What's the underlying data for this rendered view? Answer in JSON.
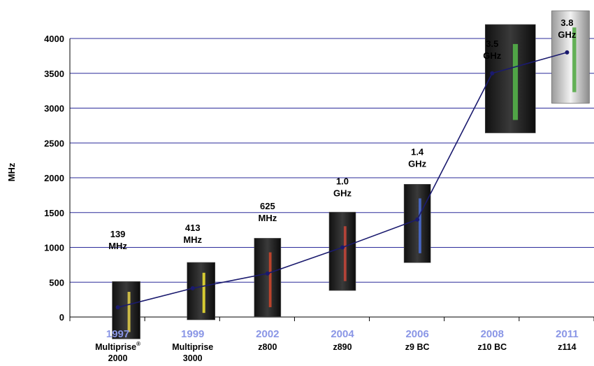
{
  "chart_data": {
    "type": "line",
    "ylabel": "MHz",
    "ylim": [
      0,
      4000
    ],
    "yticks": [
      "0",
      "500",
      "1000",
      "1500",
      "2000",
      "2500",
      "3000",
      "3500",
      "4000"
    ],
    "grid": true,
    "categories": [
      {
        "year": "1997",
        "model": [
          "Multiprise",
          "2000"
        ],
        "sup": "®"
      },
      {
        "year": "1999",
        "model": [
          "Multiprise",
          "3000"
        ]
      },
      {
        "year": "2002",
        "model": [
          "z800"
        ]
      },
      {
        "year": "2004",
        "model": [
          "z890"
        ]
      },
      {
        "year": "2006",
        "model": [
          "z9 BC"
        ]
      },
      {
        "year": "2008",
        "model": [
          "z10 BC"
        ]
      },
      {
        "year": "2011",
        "model": [
          "z114"
        ]
      }
    ],
    "series": [
      {
        "values": [
          139,
          413,
          625,
          1000,
          1400,
          3500,
          3800
        ]
      }
    ],
    "point_labels": [
      [
        "139",
        "MHz"
      ],
      [
        "413",
        "MHz"
      ],
      [
        "625",
        "MHz"
      ],
      [
        "1.0",
        "GHz"
      ],
      [
        "1.4",
        "GHz"
      ],
      [
        "3.5",
        "GHz"
      ],
      [
        "3.8",
        "GHz"
      ]
    ],
    "colors": {
      "grid": "#2b2b9a",
      "line": "#1a1a6e",
      "year": "#8a96e6"
    }
  }
}
